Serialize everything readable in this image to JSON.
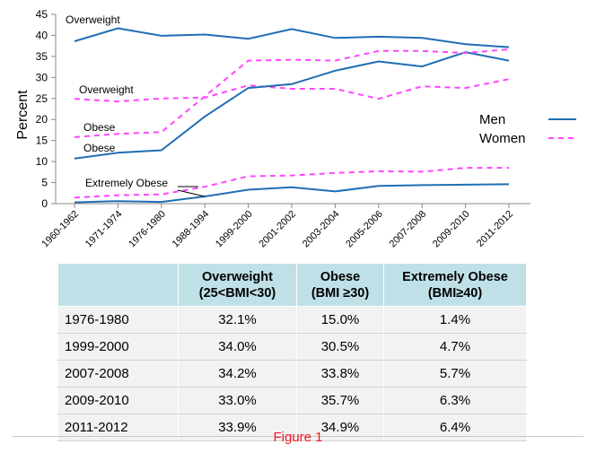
{
  "chart_data": {
    "type": "line",
    "categories": [
      "1960-1962",
      "1971-1974",
      "1976-1980",
      "1988-1994",
      "1999-2000",
      "2001-2002",
      "2003-2004",
      "2005-2006",
      "2007-2008",
      "2009-2010",
      "2011-2012"
    ],
    "ylabel": "Percent",
    "ylim": [
      0,
      45
    ],
    "yticks": [
      0,
      5,
      10,
      15,
      20,
      25,
      30,
      35,
      40,
      45
    ],
    "grid": false,
    "legend_position": "right",
    "series": [
      {
        "name": "Men",
        "group": "Overweight",
        "style": "solid",
        "color": "#1f6eb4",
        "values": [
          38.6,
          41.7,
          39.9,
          40.2,
          39.2,
          41.5,
          39.4,
          39.7,
          39.4,
          37.9,
          37.2
        ]
      },
      {
        "name": "Women",
        "group": "Overweight",
        "style": "dashed",
        "color": "#ff44ff",
        "values": [
          24.9,
          24.3,
          25.0,
          25.2,
          28.1,
          27.3,
          27.3,
          24.9,
          27.9,
          27.5,
          29.6
        ]
      },
      {
        "name": "Men",
        "group": "Obese",
        "style": "solid",
        "color": "#1f6eb4",
        "values": [
          10.7,
          12.1,
          12.7,
          20.7,
          27.5,
          28.4,
          31.6,
          33.8,
          32.6,
          36.0,
          34.0
        ]
      },
      {
        "name": "Women",
        "group": "Obese",
        "style": "dashed",
        "color": "#ff44ff",
        "values": [
          15.8,
          16.6,
          17.0,
          25.5,
          34.0,
          34.2,
          34.0,
          36.3,
          36.3,
          35.8,
          36.7
        ]
      },
      {
        "name": "Men",
        "group": "Extremely Obese",
        "style": "solid",
        "color": "#1f6eb4",
        "values": [
          0.3,
          0.6,
          0.4,
          1.7,
          3.3,
          3.9,
          2.9,
          4.2,
          4.4,
          4.5,
          4.6
        ]
      },
      {
        "name": "Women",
        "group": "Extremely Obese",
        "style": "dashed",
        "color": "#ff44ff",
        "values": [
          1.4,
          2.0,
          2.2,
          4.0,
          6.5,
          6.7,
          7.3,
          7.7,
          7.6,
          8.5,
          8.5
        ]
      }
    ],
    "annotations": [
      "Overweight",
      "Overweight",
      "Obese",
      "Obese",
      "Extremely Obese"
    ],
    "legend": [
      "Men",
      "Women"
    ]
  },
  "table": {
    "headers": [
      "",
      "Overweight (25<BMI<30)",
      "Obese (BMI ≥30)",
      "Extremely Obese (BMI≥40)"
    ],
    "header_lines": [
      [
        "",
        ""
      ],
      [
        "Overweight",
        "(25<BMI<30)"
      ],
      [
        "Obese",
        "(BMI ≥30)"
      ],
      [
        "Extremely Obese",
        "(BMI≥40)"
      ]
    ],
    "rows": [
      [
        "1976-1980",
        "32.1%",
        "15.0%",
        "1.4%"
      ],
      [
        "1999-2000",
        "34.0%",
        "30.5%",
        "4.7%"
      ],
      [
        "2007-2008",
        "34.2%",
        "33.8%",
        "5.7%"
      ],
      [
        "2009-2010",
        "33.0%",
        "35.7%",
        "6.3%"
      ],
      [
        "2011-2012",
        "33.9%",
        "34.9%",
        "6.4%"
      ]
    ]
  },
  "caption": "Figure 1"
}
